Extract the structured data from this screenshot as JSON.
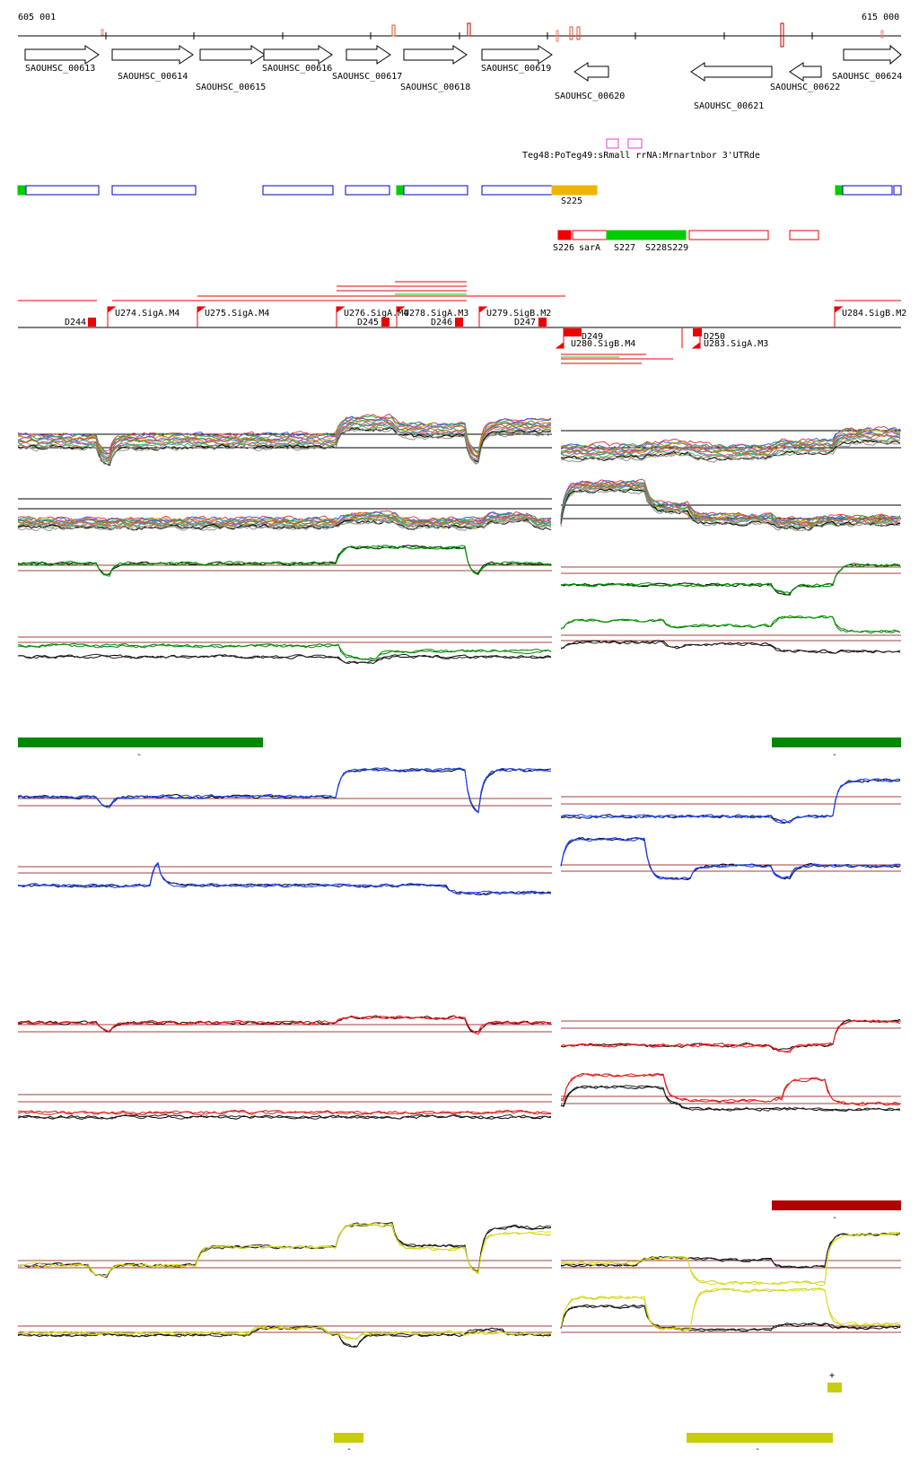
{
  "coords": {
    "start": "605 001",
    "end": "615 000"
  },
  "genes": [
    {
      "id": "g613",
      "label": "SAOUHSC_00613",
      "strand": "+"
    },
    {
      "id": "g614",
      "label": "SAOUHSC_00614",
      "strand": "+"
    },
    {
      "id": "g615",
      "label": "SAOUHSC_00615",
      "strand": "+"
    },
    {
      "id": "g616",
      "label": "SAOUHSC_00616",
      "strand": "+"
    },
    {
      "id": "g617",
      "label": "SAOUHSC_00617",
      "strand": "+"
    },
    {
      "id": "g618",
      "label": "SAOUHSC_00618",
      "strand": "+"
    },
    {
      "id": "g619",
      "label": "SAOUHSC_00619",
      "strand": "+"
    },
    {
      "id": "g620",
      "label": "SAOUHSC_00620",
      "strand": "-"
    },
    {
      "id": "g621",
      "label": "SAOUHSC_00621",
      "strand": "-"
    },
    {
      "id": "g622",
      "label": "SAOUHSC_00622",
      "strand": "-"
    },
    {
      "id": "g624",
      "label": "SAOUHSC_00624",
      "strand": "+"
    }
  ],
  "ncrna_label": "Teg48:PoTeg49:sRmall rrNA:Mrnartnbor 3'UTRde",
  "segments": [
    {
      "id": "s225",
      "label": "S225"
    },
    {
      "id": "s226",
      "label": "S226"
    },
    {
      "id": "sarA",
      "label": "sarA"
    },
    {
      "id": "s227",
      "label": "S227"
    },
    {
      "id": "s228",
      "label": "S228S229"
    }
  ],
  "promoters": [
    {
      "id": "u274",
      "label": "U274.SigA.M4"
    },
    {
      "id": "u275",
      "label": "U275.SigA.M4"
    },
    {
      "id": "u276",
      "label": "U276.SigA.M4"
    },
    {
      "id": "u278",
      "label": "U278.SigA.M3"
    },
    {
      "id": "u279",
      "label": "U279.SigB.M2"
    },
    {
      "id": "u284",
      "label": "U284.SigB.M2"
    },
    {
      "id": "u280",
      "label": "U280.SigB.M4"
    },
    {
      "id": "u283",
      "label": "U283.SigA.M3"
    }
  ],
  "terminators": [
    {
      "id": "d244",
      "label": "D244"
    },
    {
      "id": "d245",
      "label": "D245"
    },
    {
      "id": "d246",
      "label": "D246"
    },
    {
      "id": "d247",
      "label": "D247"
    },
    {
      "id": "d249",
      "label": "D249"
    },
    {
      "id": "d250",
      "label": "D250"
    }
  ],
  "bar_signs": {
    "green_left": "-",
    "green_right": "-",
    "red_right": "-",
    "yellow_plus": "+",
    "yellow_mid": "-",
    "yellow_right": "-"
  },
  "colors": {
    "gene": "#000000",
    "segment_box": "#0000cc",
    "segment_green": "#00cc00",
    "s225": "#f0b400",
    "promoter": "#ff0000",
    "guide": "#a04040",
    "green": "#007f00",
    "blue": "#1a3fc0",
    "red": "#cc1010",
    "yellow": "#c8cc10",
    "dark_red": "#b00000",
    "magenta": "#e040e0"
  }
}
